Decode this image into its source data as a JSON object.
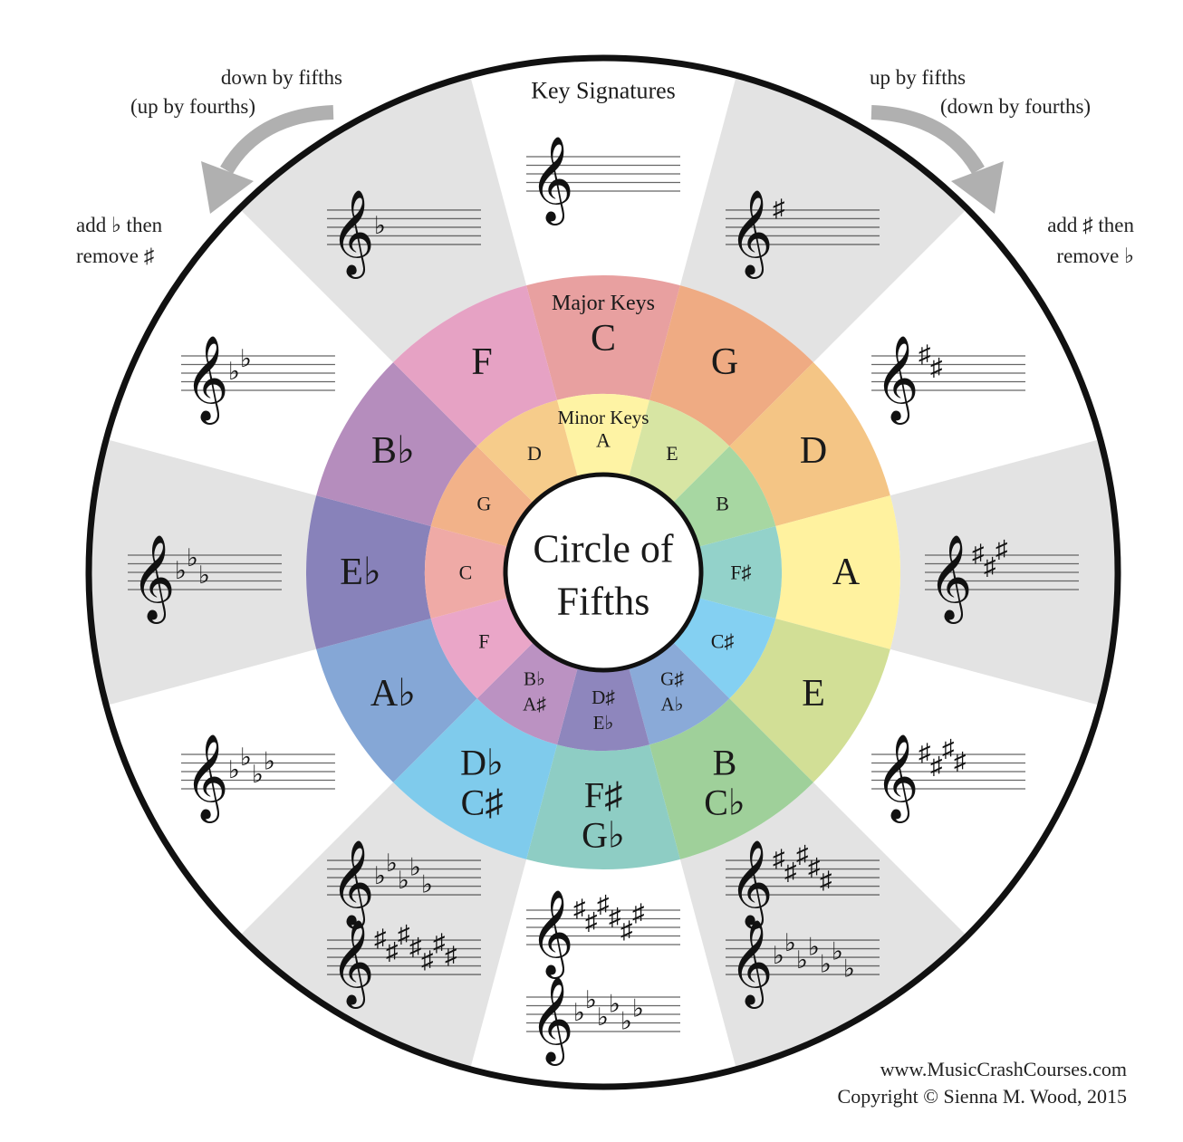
{
  "title": [
    "Circle of",
    "Fifths"
  ],
  "ring_labels": {
    "key_signatures": "Key Signatures",
    "major": "Major Keys",
    "minor": "Minor Keys"
  },
  "directions": {
    "left": {
      "line1": "down by fifths",
      "line2": "(up by fourths)"
    },
    "right": {
      "line1": "up by fifths",
      "line2": "(down by fourths)"
    }
  },
  "rules": {
    "left": {
      "line1": "add ♭ then",
      "line2": "remove ♯"
    },
    "right": {
      "line1": "add ♯ then",
      "line2": "remove ♭"
    }
  },
  "credit": {
    "url": "www.MusicCrashCourses.com",
    "copyright": "Copyright © Sienna M. Wood, 2015"
  },
  "colors": {
    "major": [
      "#e8a0a0",
      "#efab83",
      "#f4c585",
      "#fff29f",
      "#d2df96",
      "#9fd09a",
      "#8ecdc4",
      "#7fcbec",
      "#85a7d6",
      "#8882ba",
      "#b58dbd",
      "#e6a2c4"
    ],
    "minor": [
      "#fef3a4",
      "#d7e5a3",
      "#a7d7a2",
      "#93d2ca",
      "#84d0f2",
      "#8aaad8",
      "#8e86bd",
      "#bb92c2",
      "#eaa6c8",
      "#efaaa6",
      "#f2b289",
      "#f6cc8b"
    ],
    "signature_light": "#e3e3e3",
    "arrow": "#b0b0b0"
  },
  "keys": [
    {
      "major": [
        "C"
      ],
      "minor": [
        "A"
      ],
      "signature": {
        "accidental": "",
        "count": 0
      }
    },
    {
      "major": [
        "G"
      ],
      "minor": [
        "E"
      ],
      "signature": {
        "accidental": "sharp",
        "count": 1
      }
    },
    {
      "major": [
        "D"
      ],
      "minor": [
        "B"
      ],
      "signature": {
        "accidental": "sharp",
        "count": 2
      }
    },
    {
      "major": [
        "A"
      ],
      "minor": [
        "F♯"
      ],
      "signature": {
        "accidental": "sharp",
        "count": 3
      }
    },
    {
      "major": [
        "E"
      ],
      "minor": [
        "C♯"
      ],
      "signature": {
        "accidental": "sharp",
        "count": 4
      }
    },
    {
      "major": [
        "B",
        "C♭"
      ],
      "minor": [
        "G♯",
        "A♭"
      ],
      "signature": [
        {
          "accidental": "sharp",
          "count": 5
        },
        {
          "accidental": "flat",
          "count": 7
        }
      ]
    },
    {
      "major": [
        "F♯",
        "G♭"
      ],
      "minor": [
        "D♯",
        "E♭"
      ],
      "signature": [
        {
          "accidental": "sharp",
          "count": 6
        },
        {
          "accidental": "flat",
          "count": 6
        }
      ]
    },
    {
      "major": [
        "D♭",
        "C♯"
      ],
      "minor": [
        "B♭",
        "A♯"
      ],
      "signature": [
        {
          "accidental": "flat",
          "count": 5
        },
        {
          "accidental": "sharp",
          "count": 7
        }
      ]
    },
    {
      "major": [
        "A♭"
      ],
      "minor": [
        "F"
      ],
      "signature": {
        "accidental": "flat",
        "count": 4
      }
    },
    {
      "major": [
        "E♭"
      ],
      "minor": [
        "C"
      ],
      "signature": {
        "accidental": "flat",
        "count": 3
      }
    },
    {
      "major": [
        "B♭"
      ],
      "minor": [
        "G"
      ],
      "signature": {
        "accidental": "flat",
        "count": 2
      }
    },
    {
      "major": [
        "F"
      ],
      "minor": [
        "D"
      ],
      "signature": {
        "accidental": "flat",
        "count": 1
      }
    }
  ]
}
